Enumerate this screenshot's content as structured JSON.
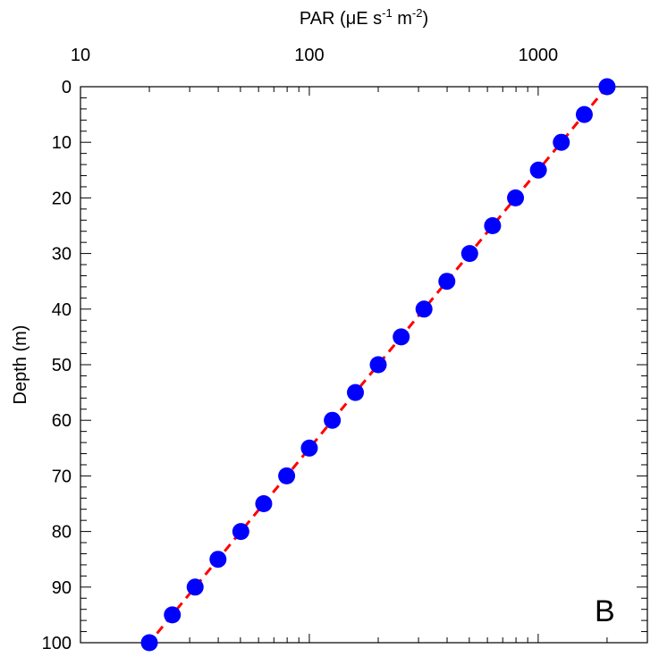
{
  "chart_data": {
    "type": "scatter",
    "x_axis": {
      "label_main": "PAR (",
      "label_mu": "μ",
      "label_unit_1": "E s",
      "label_sup_1": "-1",
      "label_unit_2": " m",
      "label_sup_2": "-2",
      "label_close": ")",
      "scale": "log",
      "position": "top",
      "range": [
        10,
        3000
      ],
      "ticks": [
        10,
        100,
        1000
      ],
      "tick_labels": [
        "10",
        "100",
        "1000"
      ]
    },
    "y_axis": {
      "label": "Depth (m)",
      "range": [
        0,
        100
      ],
      "inverted": true,
      "ticks": [
        0,
        10,
        20,
        30,
        40,
        50,
        60,
        70,
        80,
        90,
        100
      ],
      "tick_labels": [
        "0",
        "10",
        "20",
        "30",
        "40",
        "50",
        "60",
        "70",
        "80",
        "90",
        "100"
      ]
    },
    "series": [
      {
        "kind": "points",
        "color": "#0000ff",
        "x": [
          2000,
          1590,
          1262,
          1002,
          796,
          632,
          502,
          399,
          317,
          252,
          200,
          159,
          126,
          100,
          79.6,
          63.2,
          50.2,
          39.9,
          31.7,
          25.2,
          20
        ],
        "y": [
          0,
          5,
          10,
          15,
          20,
          25,
          30,
          35,
          40,
          45,
          50,
          55,
          60,
          65,
          70,
          75,
          80,
          85,
          90,
          95,
          100
        ]
      },
      {
        "kind": "fit-line",
        "color": "#ff0000",
        "style": "dashed",
        "x": [
          2000,
          20
        ],
        "y": [
          0,
          100
        ]
      }
    ],
    "grid": false,
    "panel_label": "B"
  }
}
